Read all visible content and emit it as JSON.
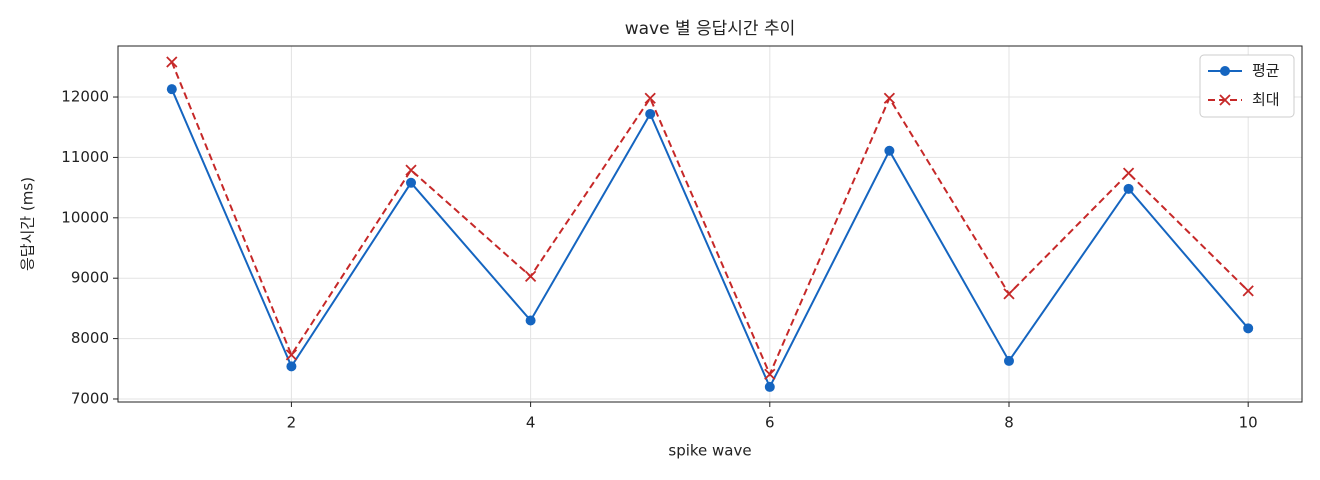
{
  "chart_data": {
    "type": "line",
    "title": "wave 별 응답시간 추이",
    "xlabel": "spike wave",
    "ylabel": "응답시간 (ms)",
    "x": [
      1,
      2,
      3,
      4,
      5,
      6,
      7,
      8,
      9,
      10
    ],
    "series": [
      {
        "name": "평균",
        "color": "#1565c0",
        "linestyle": "solid",
        "marker": "circle",
        "values": [
          12130,
          7540,
          10580,
          8300,
          11720,
          7200,
          11110,
          7630,
          10480,
          8170
        ]
      },
      {
        "name": "최대",
        "color": "#c62828",
        "linestyle": "dashed",
        "marker": "x",
        "values": [
          12580,
          7730,
          10790,
          9030,
          11980,
          7410,
          11980,
          8740,
          10740,
          8790
        ]
      }
    ],
    "xlim": [
      0.55,
      10.45
    ],
    "xticks": [
      2,
      4,
      6,
      8,
      10
    ],
    "ylim": [
      6950,
      12845
    ],
    "yticks": [
      7000,
      8000,
      9000,
      10000,
      11000,
      12000
    ],
    "grid": true,
    "legend": "upper right"
  }
}
